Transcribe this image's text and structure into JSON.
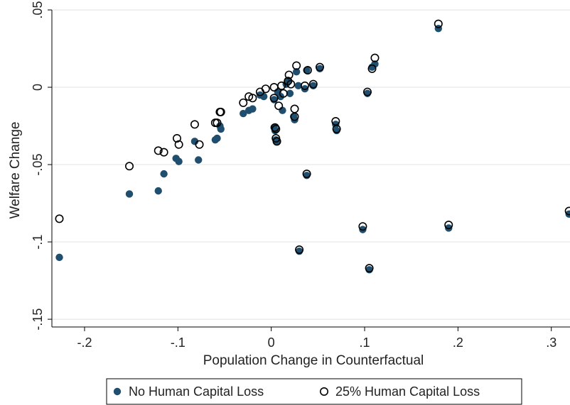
{
  "chart_data": {
    "type": "scatter",
    "title": "",
    "xlabel": "Population Change in Counterfactual",
    "ylabel": "Welfare Change",
    "xlim": [
      -0.235,
      0.32
    ],
    "ylim": [
      -0.155,
      0.05
    ],
    "x_ticks": [
      -0.2,
      -0.1,
      0,
      0.1,
      0.2,
      0.3
    ],
    "x_tick_labels": [
      "-.2",
      "-.1",
      "0",
      ".1",
      ".2",
      ".3"
    ],
    "y_ticks": [
      -0.15,
      -0.1,
      -0.05,
      0,
      0.05
    ],
    "y_tick_labels": [
      "-.15",
      "-.1",
      "-.05",
      "0",
      ".05"
    ],
    "grid": "horizontal",
    "legend_position": "bottom",
    "colors": {
      "filled": "#1f4e6e",
      "hollow_edge": "#000000",
      "grid": "#e6e6e6"
    },
    "series": [
      {
        "name": "No Human Capital Loss",
        "marker": "filled",
        "points": [
          [
            -0.227,
            -0.11
          ],
          [
            -0.152,
            -0.069
          ],
          [
            -0.121,
            -0.067
          ],
          [
            -0.115,
            -0.056
          ],
          [
            -0.102,
            -0.046
          ],
          [
            -0.099,
            -0.048
          ],
          [
            -0.082,
            -0.035
          ],
          [
            -0.078,
            -0.047
          ],
          [
            -0.06,
            -0.034
          ],
          [
            -0.058,
            -0.033
          ],
          [
            -0.055,
            -0.025
          ],
          [
            -0.054,
            -0.027
          ],
          [
            -0.03,
            -0.017
          ],
          [
            -0.024,
            -0.015
          ],
          [
            -0.02,
            -0.014
          ],
          [
            -0.012,
            -0.005
          ],
          [
            -0.008,
            -0.006
          ],
          [
            0.003,
            -0.008
          ],
          [
            0.003,
            -0.026
          ],
          [
            0.004,
            -0.028
          ],
          [
            0.005,
            -0.034
          ],
          [
            0.006,
            -0.035
          ],
          [
            0.007,
            -0.003
          ],
          [
            0.01,
            -0.006
          ],
          [
            0.012,
            -0.015
          ],
          [
            0.016,
            0.002
          ],
          [
            0.018,
            0.004
          ],
          [
            0.02,
            -0.004
          ],
          [
            0.024,
            -0.019
          ],
          [
            0.025,
            -0.021
          ],
          [
            0.027,
            0.01
          ],
          [
            0.029,
            0.001
          ],
          [
            0.03,
            -0.106
          ],
          [
            0.036,
            -0.001
          ],
          [
            0.038,
            -0.057
          ],
          [
            0.038,
            0.011
          ],
          [
            0.045,
            0.001
          ],
          [
            0.052,
            0.012
          ],
          [
            0.069,
            -0.024
          ],
          [
            0.07,
            -0.028
          ],
          [
            0.098,
            -0.092
          ],
          [
            0.103,
            -0.004
          ],
          [
            0.105,
            -0.118
          ],
          [
            0.108,
            0.013
          ],
          [
            0.111,
            0.015
          ],
          [
            0.179,
            0.038
          ],
          [
            0.19,
            -0.091
          ],
          [
            0.319,
            -0.082
          ]
        ]
      },
      {
        "name": "25% Human Capital Loss",
        "marker": "hollow",
        "points": [
          [
            -0.227,
            -0.085
          ],
          [
            -0.152,
            -0.051
          ],
          [
            -0.121,
            -0.041
          ],
          [
            -0.115,
            -0.042
          ],
          [
            -0.101,
            -0.033
          ],
          [
            -0.099,
            -0.037
          ],
          [
            -0.082,
            -0.024
          ],
          [
            -0.077,
            -0.037
          ],
          [
            -0.06,
            -0.023
          ],
          [
            -0.058,
            -0.023
          ],
          [
            -0.055,
            -0.016
          ],
          [
            -0.054,
            -0.016
          ],
          [
            -0.03,
            -0.01
          ],
          [
            -0.024,
            -0.006
          ],
          [
            -0.02,
            -0.007
          ],
          [
            -0.012,
            -0.003
          ],
          [
            -0.006,
            -0.001
          ],
          [
            0.003,
            -0.007
          ],
          [
            0.003,
            0.0
          ],
          [
            0.004,
            -0.026
          ],
          [
            0.005,
            -0.027
          ],
          [
            0.005,
            -0.033
          ],
          [
            0.006,
            -0.035
          ],
          [
            0.008,
            -0.012
          ],
          [
            0.011,
            0.001
          ],
          [
            0.013,
            -0.004
          ],
          [
            0.018,
            0.004
          ],
          [
            0.019,
            0.008
          ],
          [
            0.021,
            0.002
          ],
          [
            0.025,
            -0.014
          ],
          [
            0.025,
            -0.019
          ],
          [
            0.027,
            0.014
          ],
          [
            0.03,
            -0.105
          ],
          [
            0.036,
            0.001
          ],
          [
            0.038,
            -0.056
          ],
          [
            0.039,
            0.011
          ],
          [
            0.045,
            0.002
          ],
          [
            0.052,
            0.013
          ],
          [
            0.069,
            -0.022
          ],
          [
            0.07,
            -0.027
          ],
          [
            0.098,
            -0.09
          ],
          [
            0.103,
            -0.003
          ],
          [
            0.105,
            -0.117
          ],
          [
            0.108,
            0.012
          ],
          [
            0.111,
            0.019
          ],
          [
            0.179,
            0.041
          ],
          [
            0.19,
            -0.089
          ],
          [
            0.319,
            -0.08
          ]
        ]
      }
    ]
  }
}
